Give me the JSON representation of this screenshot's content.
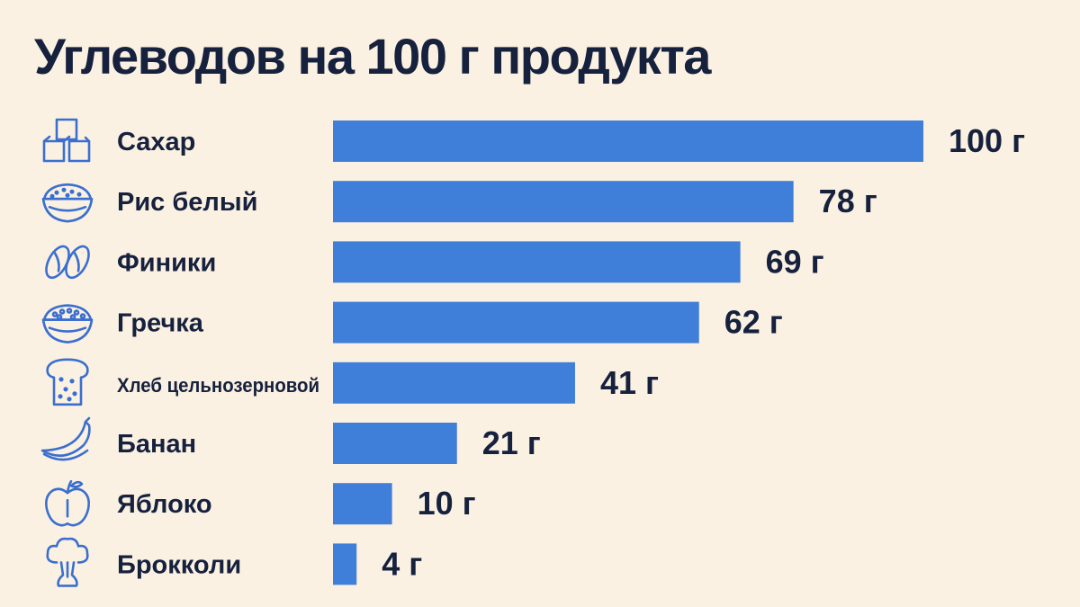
{
  "chart_data": {
    "type": "bar",
    "orientation": "horizontal",
    "title": "Углеводов на 100 г продукта",
    "unit": "г",
    "bar_color": "#3f7fd9",
    "categories": [
      "Сахар",
      "Рис белый",
      "Финики",
      "Гречка",
      "Хлеб цельнозерновой",
      "Банан",
      "Яблоко",
      "Брокколи"
    ],
    "values": [
      100,
      78,
      69,
      62,
      41,
      21,
      10,
      4
    ],
    "value_labels": [
      "100 г",
      "78 г",
      "69 г",
      "62 г",
      "41 г",
      "21 г",
      "10 г",
      "4 г"
    ],
    "icons": [
      "sugar-cubes-icon",
      "rice-bowl-icon",
      "dates-icon",
      "buckwheat-bowl-icon",
      "bread-slice-icon",
      "banana-icon",
      "apple-icon",
      "broccoli-icon"
    ],
    "xlim": [
      0,
      100
    ],
    "grid": false,
    "legend": "none"
  }
}
